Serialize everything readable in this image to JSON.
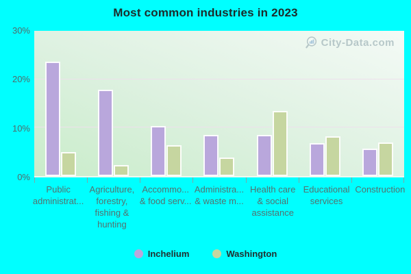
{
  "title": "Most common industries in 2023",
  "watermark": {
    "text": "City-Data.com"
  },
  "colors": {
    "background": "#00ffff",
    "plot_gradient_top": "#f4faf6",
    "plot_gradient_bottom": "#c9ecca",
    "inchelium_bar": "#b9a7dc",
    "washington_bar": "#c6d6a0",
    "bar_border": "#ffffff",
    "gridline": "#eee0ec",
    "axis_text": "#506b6b",
    "title_text": "#1c2b2b",
    "watermark_text": "#a9bcbf"
  },
  "chart_data": {
    "type": "bar",
    "title": "Most common industries in 2023",
    "categories": [
      "Public administrat...",
      "Agriculture, forestry, fishing & hunting",
      "Accommo... & food serv...",
      "Administra... & waste m...",
      "Health care & social assistance",
      "Educational services",
      "Construction"
    ],
    "category_lines": [
      [
        "Public",
        "administrat..."
      ],
      [
        "Agriculture,",
        "forestry,",
        "fishing &",
        "hunting"
      ],
      [
        "Accommo...",
        "& food serv..."
      ],
      [
        "Administra...",
        "& waste m..."
      ],
      [
        "Health care",
        "& social",
        "assistance"
      ],
      [
        "Educational",
        "services"
      ],
      [
        "Construction"
      ]
    ],
    "series": [
      {
        "name": "Inchelium",
        "color": "#b9a7dc",
        "values": [
          23.6,
          17.8,
          10.3,
          8.5,
          8.5,
          6.8,
          5.7
        ]
      },
      {
        "name": "Washington",
        "color": "#c6d6a0",
        "values": [
          5.0,
          2.2,
          6.4,
          3.8,
          13.4,
          8.2,
          6.9
        ]
      }
    ],
    "xlabel": "",
    "ylabel": "",
    "ylim": [
      0,
      30
    ],
    "yticks": [
      {
        "value": 0,
        "label": "0%"
      },
      {
        "value": 10,
        "label": "10%"
      },
      {
        "value": 20,
        "label": "20%"
      },
      {
        "value": 30,
        "label": "30%"
      }
    ],
    "gridlines": [
      10,
      20
    ],
    "grid": true,
    "legend_position": "bottom-center"
  }
}
